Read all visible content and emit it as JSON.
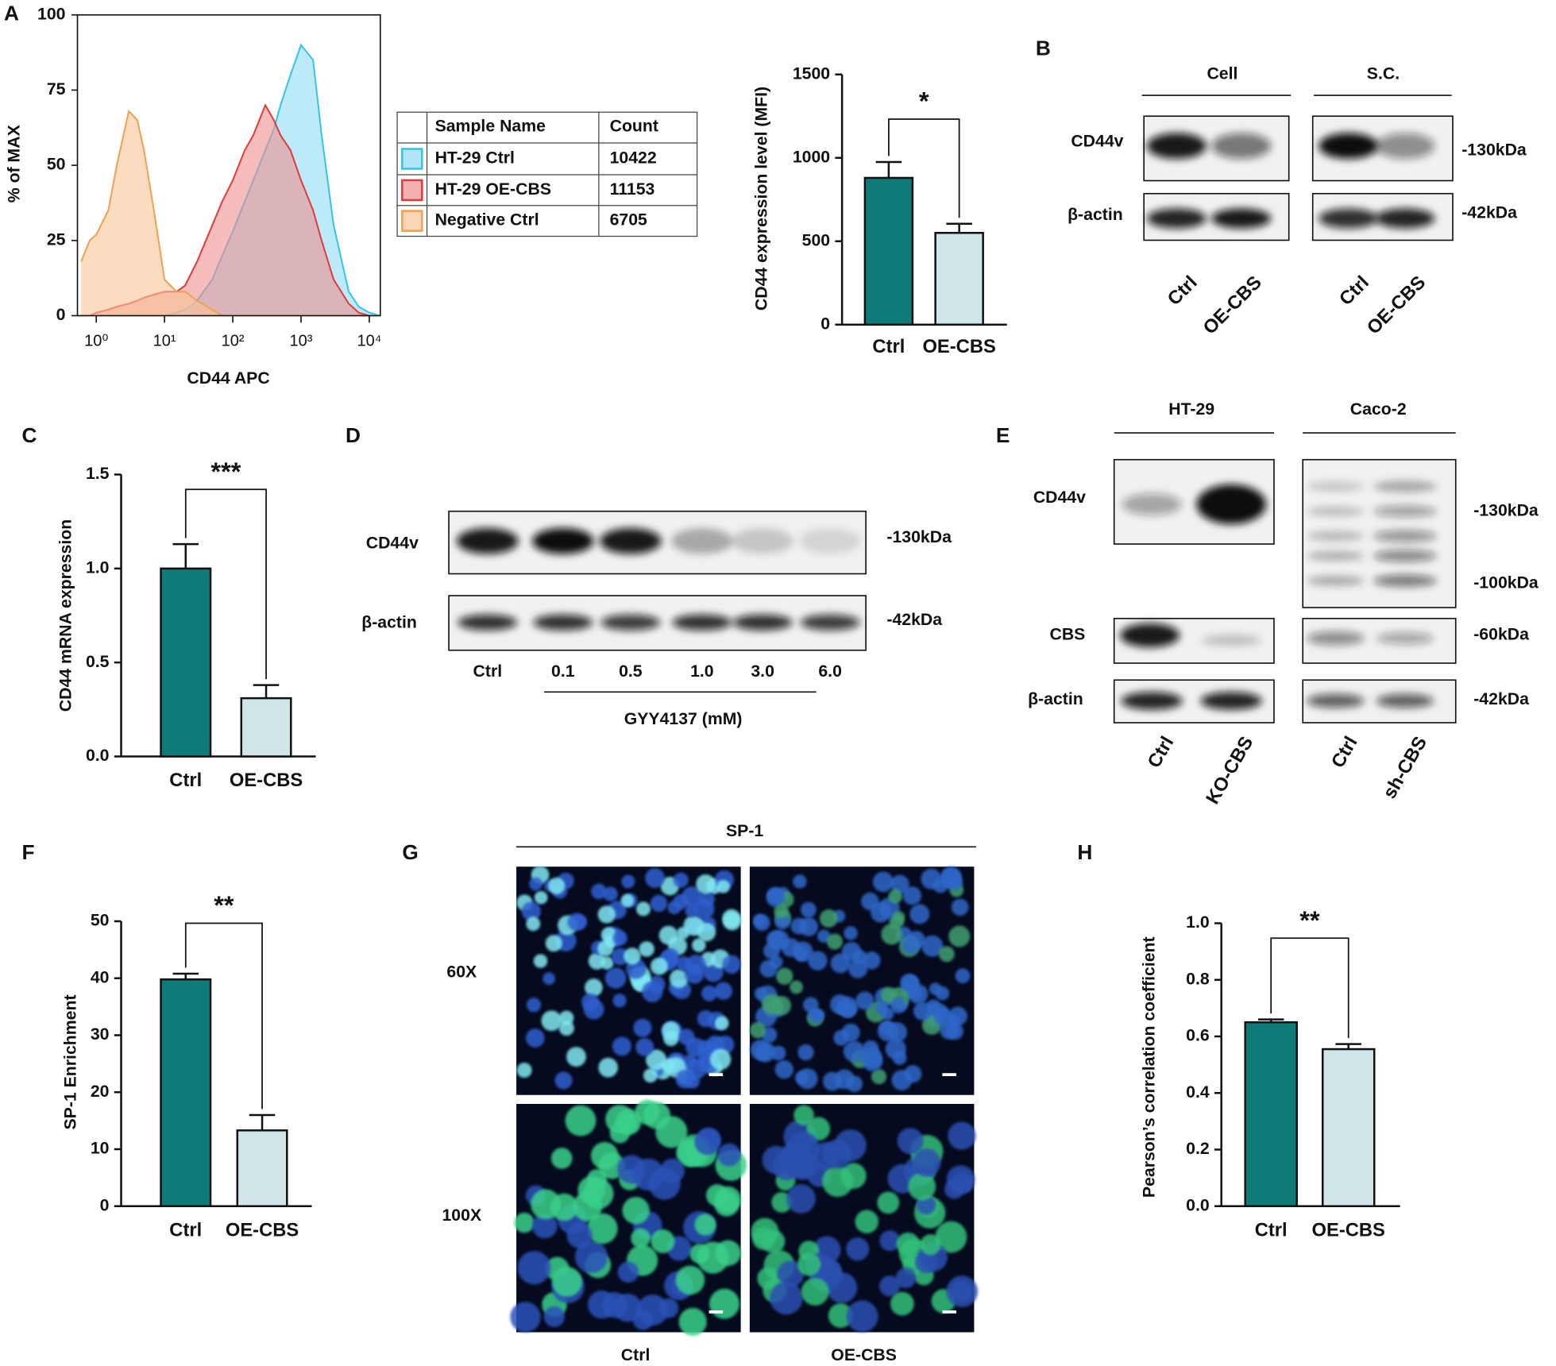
{
  "chart_data": [
    {
      "type": "area",
      "panel": "A",
      "ylabel": "% of MAX",
      "xlabel": "CD44 APC",
      "xscale": "log",
      "xlim": [
        0.53,
        14500
      ],
      "xticks": [
        {
          "value": 1,
          "label": "10⁰"
        },
        {
          "value": 10,
          "label": "10¹"
        },
        {
          "value": 100,
          "label": "10²"
        },
        {
          "value": 1000,
          "label": "10³"
        },
        {
          "value": 10000,
          "label": "10⁴"
        }
      ],
      "ylim": [
        0,
        100
      ],
      "yticks": [
        0,
        25,
        50,
        75,
        100
      ],
      "x": [
        0.6,
        0.8,
        1,
        1.5,
        2,
        3,
        4,
        5,
        7,
        10,
        15,
        20,
        30,
        50,
        70,
        100,
        150,
        200,
        300,
        400,
        500,
        700,
        1000,
        1500,
        2000,
        3000,
        5000,
        7000,
        10000,
        14000
      ],
      "legend_header": [
        "Sample Name",
        "Count"
      ],
      "series": [
        {
          "name": "HT-29 Ctrl",
          "count": 10422,
          "color": "#35c3ea",
          "fill": "#8fdcf5",
          "values": [
            0,
            0,
            0,
            0,
            0,
            0,
            0,
            0,
            0,
            0,
            1,
            2,
            5,
            12,
            20,
            28,
            38,
            45,
            55,
            62,
            70,
            80,
            90,
            85,
            60,
            30,
            8,
            3,
            1,
            0
          ]
        },
        {
          "name": "HT-29 OE-CBS",
          "count": 11153,
          "color": "#e03a3a",
          "fill": "#f08f8f",
          "values": [
            0,
            0,
            1,
            2,
            3,
            4,
            5,
            6,
            7,
            8,
            8,
            10,
            18,
            30,
            38,
            45,
            55,
            60,
            70,
            65,
            60,
            55,
            45,
            35,
            25,
            12,
            4,
            1,
            0,
            0
          ]
        },
        {
          "name": "Negative Ctrl",
          "count": 6705,
          "color": "#f0a050",
          "fill": "#f8c497",
          "values": [
            18,
            25,
            27,
            35,
            50,
            68,
            65,
            55,
            35,
            12,
            8,
            8,
            5,
            2,
            0,
            0,
            0,
            0,
            0,
            0,
            0,
            0,
            0,
            0,
            0,
            0,
            0,
            0,
            0,
            0
          ]
        }
      ]
    },
    {
      "type": "bar",
      "ylabel": "CD44 expression level (MFI)",
      "categories": [
        "Ctrl",
        "OE-CBS"
      ],
      "values": [
        880,
        550
      ],
      "errors": [
        95,
        55
      ],
      "colors": [
        "#0f7b78",
        "#cfe5e8"
      ],
      "ylim": [
        0,
        1500
      ],
      "yticks": [
        0,
        500,
        1000,
        1500
      ],
      "significance": "*"
    },
    {
      "type": "bar",
      "panel": "C",
      "ylabel": "CD44 mRNA expression",
      "categories": [
        "Ctrl",
        "OE-CBS"
      ],
      "values": [
        1.0,
        0.31
      ],
      "errors": [
        0.13,
        0.07
      ],
      "colors": [
        "#0f7b78",
        "#cfe5e8"
      ],
      "ylim": [
        0,
        1.5
      ],
      "yticks": [
        {
          "value": 0,
          "label": "0.0"
        },
        0.5,
        {
          "value": 1,
          "label": "1.0"
        },
        1.5
      ],
      "significance": "***"
    },
    {
      "type": "bar",
      "panel": "F",
      "ylabel": "SP-1 Enrichment",
      "categories": [
        "Ctrl",
        "OE-CBS"
      ],
      "values": [
        39.8,
        13.3
      ],
      "errors": [
        1,
        2.7
      ],
      "colors": [
        "#0f7b78",
        "#cfe5e8"
      ],
      "ylim": [
        0,
        50
      ],
      "yticks": [
        0,
        10,
        20,
        30,
        40,
        50
      ],
      "significance": "**"
    },
    {
      "type": "bar",
      "panel": "H",
      "ylabel": "Pearson’s correlation coefficient",
      "categories": [
        "Ctrl",
        "OE-CBS"
      ],
      "values": [
        0.65,
        0.555
      ],
      "errors": [
        0.01,
        0.018
      ],
      "colors": [
        "#0f7b78",
        "#cfe5e8"
      ],
      "ylim": [
        0,
        1
      ],
      "yticks": [
        {
          "value": 0,
          "label": "0.0"
        },
        0.2,
        0.4,
        0.6,
        0.8,
        {
          "value": 1,
          "label": "1.0"
        }
      ],
      "significance": "**"
    }
  ],
  "blots": [
    {
      "panel": "B",
      "groups": [
        "Cell",
        "S.C."
      ],
      "rows": [
        {
          "label": "CD44v",
          "markers": [
            "-130kDa"
          ]
        },
        {
          "label": "β-actin",
          "markers": [
            "-42kDa"
          ]
        }
      ],
      "lanes": [
        "Ctrl",
        "OE-CBS",
        "Ctrl",
        "OE-CBS"
      ]
    },
    {
      "panel": "D",
      "rows": [
        {
          "label": "CD44v",
          "markers": [
            "-130kDa"
          ]
        },
        {
          "label": "β-actin",
          "markers": [
            "-42kDa"
          ]
        }
      ],
      "lanes": [
        "Ctrl",
        "0.1",
        "0.5",
        "1.0",
        "3.0",
        "6.0"
      ],
      "treatment": "GYY4137 (mM)"
    },
    {
      "panel": "E",
      "groups": [
        "HT-29",
        "Caco-2"
      ],
      "rows": [
        {
          "label": "CD44v",
          "markers": [
            "-130kDa",
            "-100kDa"
          ]
        },
        {
          "label": "CBS",
          "markers": [
            "-60kDa"
          ]
        },
        {
          "label": "β-actin",
          "markers": [
            "-42kDa"
          ]
        }
      ],
      "lanes": [
        "Ctrl",
        "KO-CBS",
        "Ctrl",
        "sh-CBS"
      ]
    }
  ],
  "micrographs": {
    "panel": "G",
    "title": "SP-1",
    "rows": [
      "60X",
      "100X"
    ],
    "columns": [
      "Ctrl",
      "OE-CBS"
    ]
  }
}
